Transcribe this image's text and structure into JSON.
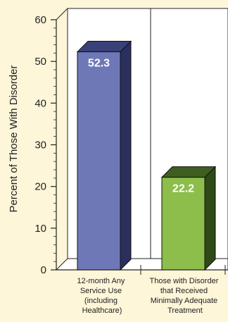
{
  "chart_data": {
    "type": "bar",
    "ylabel": "Percent of Those With Disorder",
    "ylim": [
      0,
      60
    ],
    "yticks": [
      "0",
      "10",
      "20",
      "30",
      "40",
      "50",
      "60"
    ],
    "categories": [
      [
        "12-month Any",
        "Service Use",
        "(including",
        "Healthcare)"
      ],
      [
        "Those with Disorder",
        "that Received",
        "Minimally Adequate",
        "Treatment"
      ]
    ],
    "values": [
      52.3,
      22.2
    ],
    "data_labels": [
      "52.3",
      "22.2"
    ],
    "colors": {
      "background": "#fdf6d9",
      "bar1_front": "#6f78b6",
      "bar1_side": "#2a2f5e",
      "bar1_top": "#3a4078",
      "bar2_front": "#8dbd4a",
      "bar2_side": "#2e4a17",
      "bar2_top": "#3e5f1f"
    }
  }
}
